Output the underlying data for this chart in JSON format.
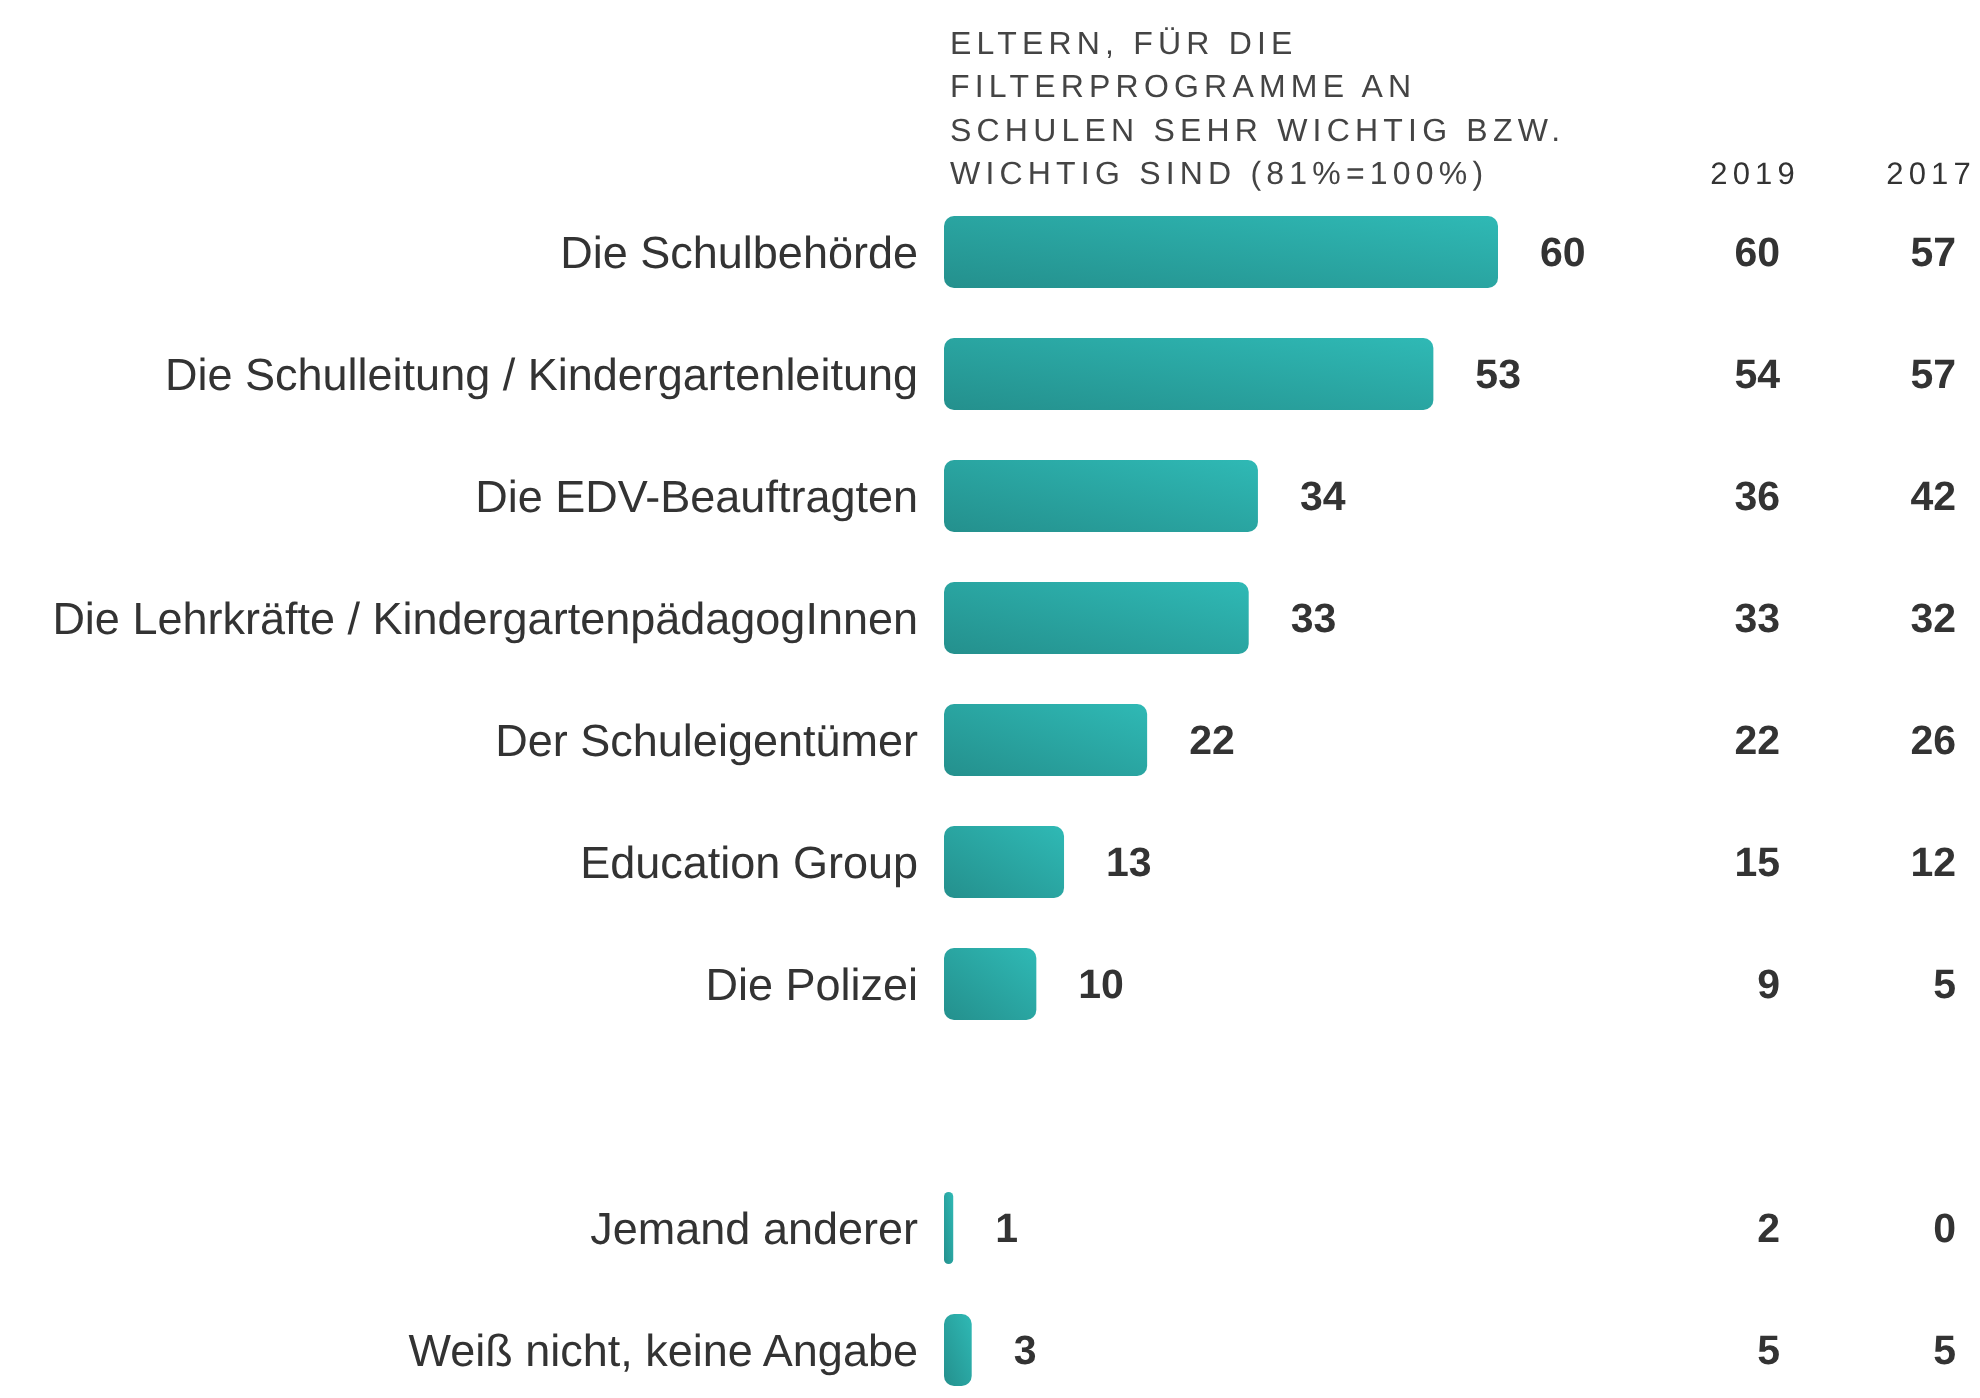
{
  "chart_data": [
    {
      "type": "bar",
      "orientation": "horizontal",
      "title": "ELTERN, FÜR DIE FILTERPROGRAMME AN SCHULEN SEHR WICHTIG BZW. WICHTIG SIND (81%=100%)",
      "categories": [
        "Die Schulbehörde",
        "Die Schulleitung / Kindergartenleitung",
        "Die EDV-Beauftragten",
        "Die Lehrkräfte / KindergartenpädagogInnen",
        "Der Schuleigentümer",
        "Education Group",
        "Die Polizei",
        null,
        "Jemand anderer",
        "Weiß nicht, keine Angabe"
      ],
      "values": [
        60,
        53,
        34,
        33,
        22,
        13,
        10,
        null,
        1,
        3
      ],
      "color": "#2aa6a3",
      "data_labels": true
    },
    {
      "type": "other",
      "title": "2019",
      "values": [
        60,
        54,
        36,
        33,
        22,
        15,
        9,
        null,
        2,
        5
      ],
      "data_labels": true
    },
    {
      "type": "other",
      "title": "2017",
      "values": [
        57,
        57,
        42,
        32,
        26,
        12,
        5,
        null,
        0,
        5
      ],
      "data_labels": true
    }
  ]
}
